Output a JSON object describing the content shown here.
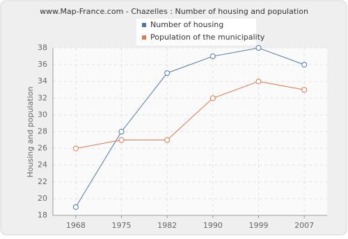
{
  "chart_data": {
    "type": "line",
    "title": "www.Map-France.com - Chazelles : Number of housing and population",
    "y_label": "Housing and population",
    "categories": [
      "1968",
      "1975",
      "1982",
      "1990",
      "1999",
      "2007"
    ],
    "series": [
      {
        "name": "Number of housing",
        "color": "#4a77a8",
        "values": [
          19,
          28,
          35,
          37,
          38,
          36
        ]
      },
      {
        "name": "Population of the municipality",
        "color": "#e07747",
        "values": [
          26,
          27,
          27,
          32,
          34,
          33
        ]
      }
    ],
    "ylim": [
      18,
      38
    ],
    "yticks": [
      18,
      20,
      22,
      24,
      26,
      28,
      30,
      32,
      34,
      36,
      38
    ],
    "grid": true
  }
}
